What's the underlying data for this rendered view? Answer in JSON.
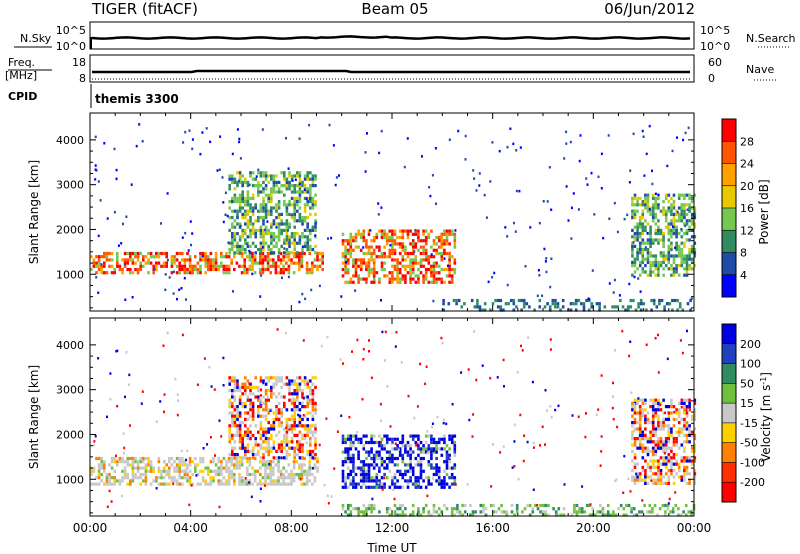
{
  "header": {
    "left": "TIGER (fitACF)",
    "center": "Beam 05",
    "right": "06/Jun/2012"
  },
  "status_panels": {
    "sky": {
      "left_label": "N.Sky",
      "left_ticks": [
        "10^5",
        "10^0"
      ],
      "right_label": "N.Search",
      "right_ticks": [
        "10^5",
        "10^0"
      ]
    },
    "freq": {
      "left_label_line1": "Freq.",
      "left_label_line2": "[MHz]",
      "left_ticks": [
        "18",
        "8"
      ],
      "right_label": "Nave",
      "right_ticks": [
        "60",
        "0"
      ]
    },
    "cpid": {
      "label": "CPID",
      "value": "themis 3300"
    }
  },
  "chart_data": [
    {
      "type": "heatmap",
      "title": "",
      "xlabel": "",
      "ylabel": "Slant Range [km]",
      "xlim": [
        0,
        24
      ],
      "ylim": [
        180,
        4600
      ],
      "yticks": [
        "4000",
        "3000",
        "2000",
        "1000"
      ],
      "colorbar": {
        "label": "Power [dB]",
        "ticks": [
          "28",
          "24",
          "20",
          "16",
          "12",
          "8",
          "4"
        ],
        "colors": [
          "#ff0000",
          "#ff5500",
          "#ffa000",
          "#e8c800",
          "#74c850",
          "#308c60",
          "#1e4ba8",
          "#0000ff"
        ]
      },
      "echo_regions_km": [
        {
          "t0": 0.0,
          "t1": 9.2,
          "r0": 1000,
          "r1": 1500,
          "level": "strong"
        },
        {
          "t0": 5.5,
          "t1": 9.0,
          "r0": 1500,
          "r1": 3300,
          "level": "medium"
        },
        {
          "t0": 10.0,
          "t1": 14.5,
          "r0": 800,
          "r1": 2000,
          "level": "strong"
        },
        {
          "t0": 21.5,
          "t1": 24.0,
          "r0": 1000,
          "r1": 2800,
          "level": "medium"
        },
        {
          "t0": 14.0,
          "t1": 24.0,
          "r0": 200,
          "r1": 450,
          "level": "weak"
        }
      ]
    },
    {
      "type": "heatmap",
      "title": "",
      "xlabel": "Time UT",
      "ylabel": "Slant Range [km]",
      "xlim": [
        0,
        24
      ],
      "ylim": [
        180,
        4600
      ],
      "xticks": [
        "00:00",
        "04:00",
        "08:00",
        "12:00",
        "16:00",
        "20:00",
        "00:00"
      ],
      "yticks": [
        "4000",
        "3000",
        "2000",
        "1000"
      ],
      "colorbar": {
        "label": "Velocity [m s^-1]",
        "ticks": [
          "200",
          "100",
          "50",
          "15",
          "-15",
          "-50",
          "-100",
          "-200"
        ],
        "colors": [
          "#0000e0",
          "#2040c0",
          "#308c60",
          "#70c040",
          "#c8c8c8",
          "#ffd000",
          "#ff8000",
          "#ff3000",
          "#ff0000"
        ]
      },
      "echo_regions_km": [
        {
          "t0": 0.0,
          "t1": 9.0,
          "r0": 900,
          "r1": 1500,
          "level": "grey"
        },
        {
          "t0": 5.5,
          "t1": 9.0,
          "r0": 1500,
          "r1": 3300,
          "level": "mixed"
        },
        {
          "t0": 10.0,
          "t1": 14.5,
          "r0": 800,
          "r1": 2000,
          "level": "blue"
        },
        {
          "t0": 21.5,
          "t1": 24.0,
          "r0": 900,
          "r1": 2800,
          "level": "mixed"
        },
        {
          "t0": 10.0,
          "t1": 24.0,
          "r0": 200,
          "r1": 450,
          "level": "green"
        }
      ]
    }
  ]
}
